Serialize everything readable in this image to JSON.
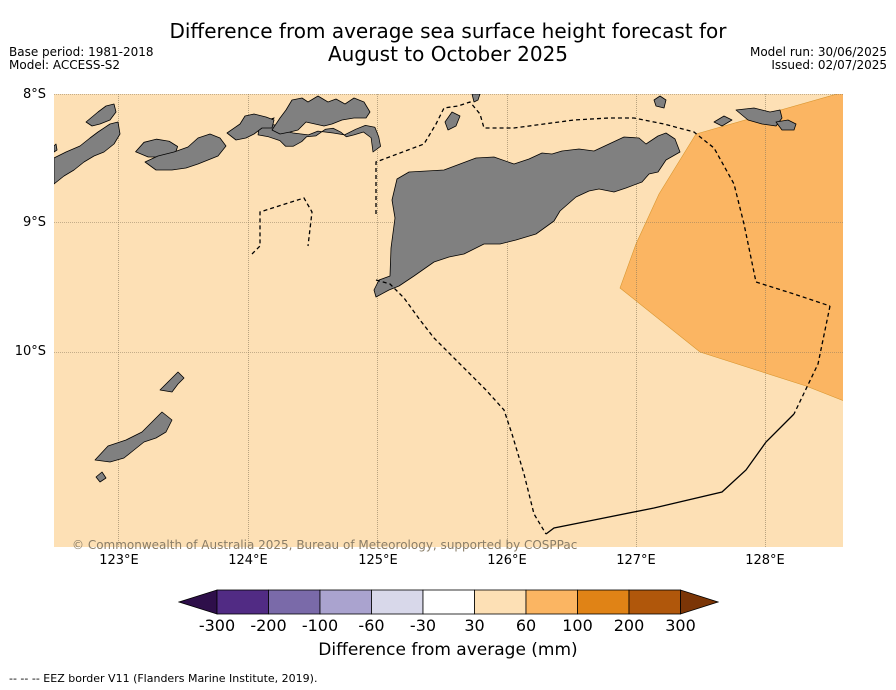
{
  "title_line1": "Difference from average sea surface height forecast for",
  "title_line2": "August to October 2025",
  "base_period": "Base period: 1981-2018",
  "model": "Model: ACCESS-S2",
  "model_run": "Model run: 30/06/2025",
  "issued": "Issued: 02/07/2025",
  "lat_labels": [
    "8°S",
    "9°S",
    "10°S"
  ],
  "lon_labels": [
    "123°E",
    "124°E",
    "125°E",
    "126°E",
    "127°E",
    "128°E"
  ],
  "copyright": "© Commonwealth of Australia 2025, Bureau of Meteorology, supported by COSPPac",
  "colorbar": {
    "label": "Difference from average (mm)",
    "ticks": [
      "-300",
      "-200",
      "-100",
      "-60",
      "-30",
      "30",
      "60",
      "100",
      "200",
      "300"
    ],
    "colors": [
      "#2e0f4a",
      "#512b84",
      "#7a6aa9",
      "#aaa3cf",
      "#d8d8ea",
      "#ffffff",
      "#fde0b5",
      "#fbb562",
      "#e08316",
      "#b0570b",
      "#7b3506"
    ]
  },
  "regions": {
    "background_color": "#fde0b5",
    "anomaly_color": "#fbb562",
    "land_color": "#808080"
  },
  "footnote": "--  --  -- EEZ border V11 (Flanders Marine Institute, 2019)."
}
